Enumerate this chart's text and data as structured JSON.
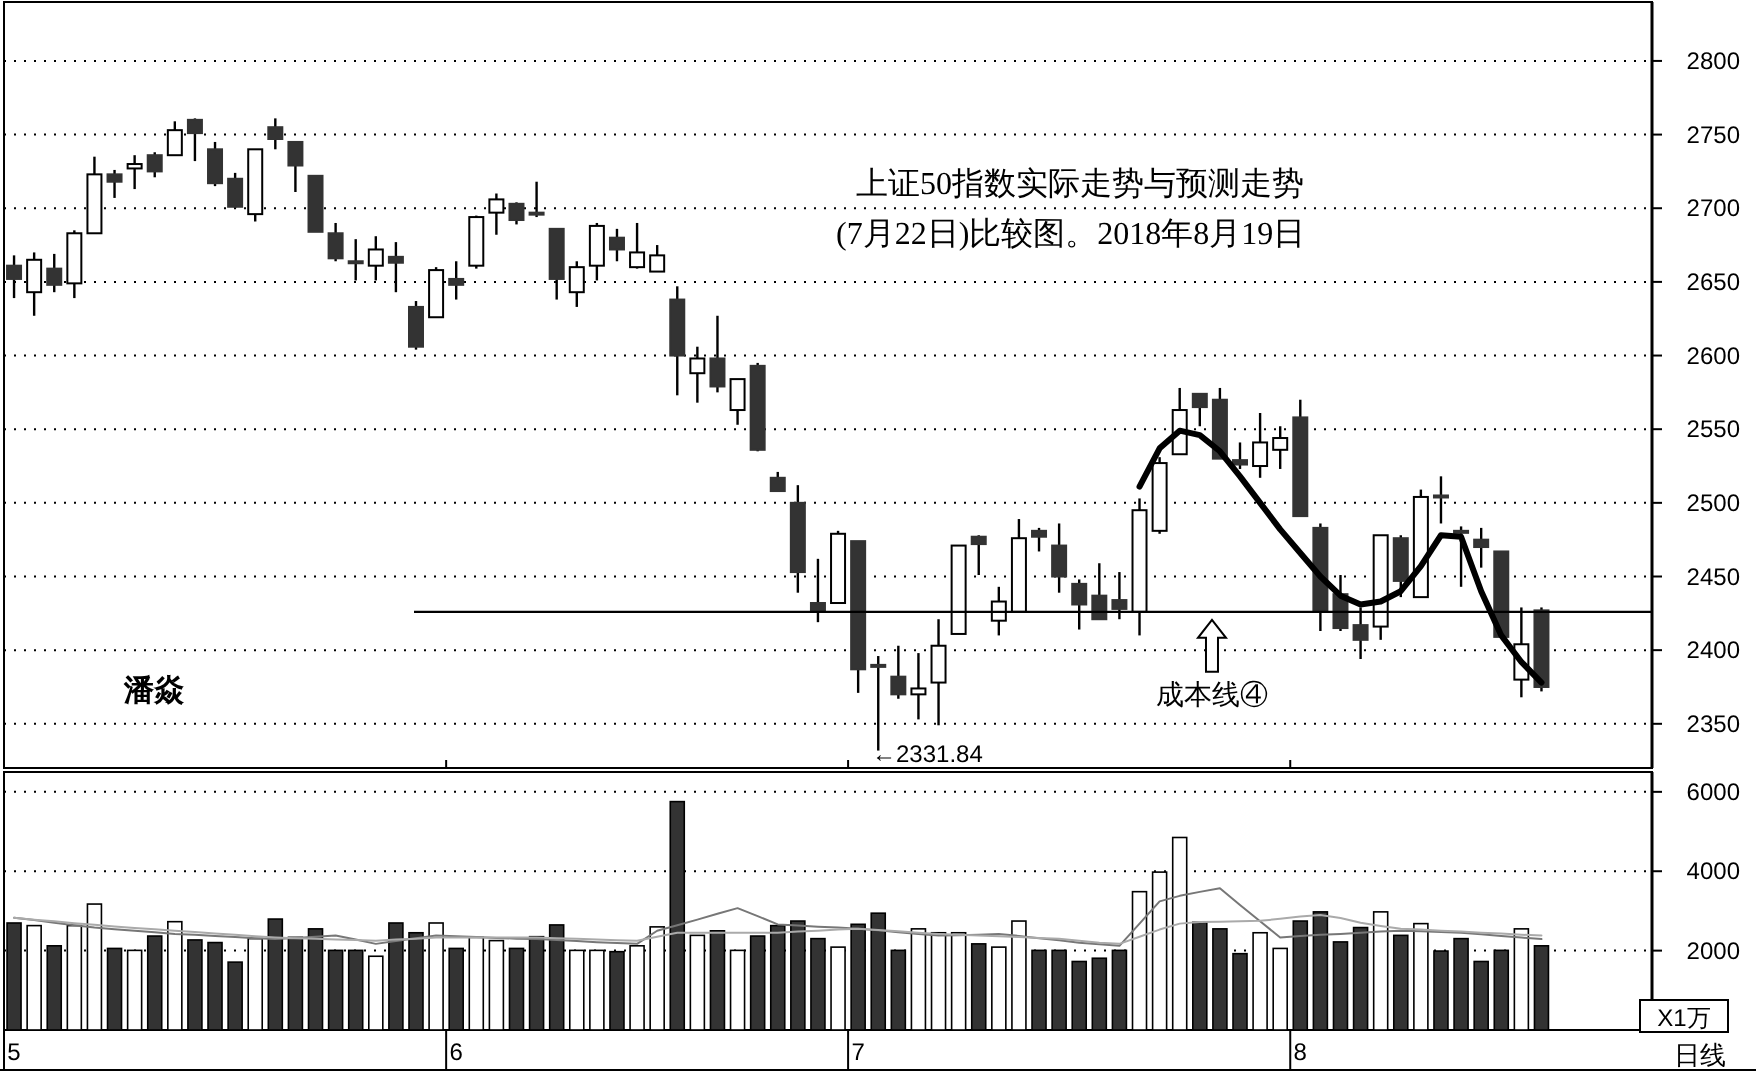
{
  "chart_data": [
    {
      "type": "candlestick",
      "categories": [
        "5",
        null,
        null,
        null,
        null,
        null,
        null,
        null,
        null,
        null,
        null,
        null,
        null,
        null,
        null,
        null,
        null,
        null,
        null,
        null,
        null,
        null,
        "6",
        null,
        null,
        null,
        null,
        null,
        null,
        null,
        null,
        null,
        null,
        null,
        null,
        null,
        null,
        null,
        null,
        null,
        null,
        null,
        "7",
        null,
        null,
        null,
        null,
        null,
        null,
        null,
        null,
        null,
        null,
        null,
        null,
        null,
        null,
        null,
        null,
        null,
        null,
        null,
        null,
        null,
        "8",
        null,
        null,
        null,
        null,
        null,
        null,
        null,
        null,
        null,
        null,
        null,
        null,
        null,
        null,
        null,
        null,
        null
      ],
      "ohlc": [
        [
          2661,
          2668,
          2639,
          2652
        ],
        [
          2643,
          2670,
          2627,
          2665
        ],
        [
          2659,
          2669,
          2643,
          2648
        ],
        [
          2649,
          2685,
          2639,
          2683
        ],
        [
          2683,
          2735,
          2683,
          2723
        ],
        [
          2723,
          2726,
          2707,
          2718
        ],
        [
          2727,
          2736,
          2713,
          2730
        ],
        [
          2736,
          2738,
          2721,
          2725
        ],
        [
          2736,
          2759,
          2736,
          2753
        ],
        [
          2760,
          2761,
          2732,
          2751
        ],
        [
          2740,
          2745,
          2715,
          2717
        ],
        [
          2720,
          2724,
          2700,
          2701
        ],
        [
          2696,
          2740,
          2691,
          2740
        ],
        [
          2755,
          2761,
          2740,
          2747
        ],
        [
          2745,
          2745,
          2711,
          2729
        ],
        [
          2722,
          2722,
          2684,
          2684
        ],
        [
          2683,
          2690,
          2664,
          2666
        ],
        [
          2664,
          2679,
          2651,
          2663
        ],
        [
          2661,
          2681,
          2651,
          2672
        ],
        [
          2667,
          2677,
          2643,
          2663
        ],
        [
          2633,
          2637,
          2604,
          2606
        ],
        [
          2626,
          2660,
          2626,
          2658
        ],
        [
          2652,
          2664,
          2638,
          2648
        ],
        [
          2661,
          2695,
          2659,
          2694
        ],
        [
          2697,
          2710,
          2682,
          2706
        ],
        [
          2703,
          2704,
          2689,
          2692
        ],
        [
          2697,
          2718,
          2694,
          2696
        ],
        [
          2686,
          2686,
          2638,
          2652
        ],
        [
          2643,
          2664,
          2633,
          2660
        ],
        [
          2661,
          2690,
          2651,
          2688
        ],
        [
          2680,
          2686,
          2664,
          2672
        ],
        [
          2660,
          2690,
          2659,
          2670
        ],
        [
          2657,
          2675,
          2657,
          2668
        ],
        [
          2638,
          2647,
          2573,
          2600
        ],
        [
          2588,
          2606,
          2568,
          2598
        ],
        [
          2598,
          2627,
          2575,
          2579
        ],
        [
          2563,
          2584,
          2553,
          2584
        ],
        [
          2593,
          2595,
          2535,
          2536
        ],
        [
          2517,
          2521,
          2508,
          2508
        ],
        [
          2500,
          2512,
          2439,
          2453
        ],
        [
          2432,
          2462,
          2419,
          2426
        ],
        [
          2432,
          2481,
          2432,
          2479
        ],
        [
          2474,
          2474,
          2371,
          2387
        ],
        [
          2390,
          2396,
          2331.84,
          2389
        ],
        [
          2382,
          2403,
          2367,
          2370
        ],
        [
          2370,
          2398,
          2353,
          2374
        ],
        [
          2378,
          2421,
          2349,
          2403
        ],
        [
          2411,
          2471,
          2411,
          2471
        ],
        [
          2477,
          2478,
          2451,
          2472
        ],
        [
          2420,
          2443,
          2410,
          2433
        ],
        [
          2426,
          2489,
          2426,
          2476
        ],
        [
          2481,
          2483,
          2467,
          2477
        ],
        [
          2471,
          2486,
          2439,
          2450
        ],
        [
          2445,
          2448,
          2414,
          2431
        ],
        [
          2437,
          2459,
          2421,
          2421
        ],
        [
          2434,
          2453,
          2421,
          2428
        ],
        [
          2426,
          2503,
          2410,
          2495
        ],
        [
          2481,
          2531,
          2479,
          2527
        ],
        [
          2533,
          2578,
          2533,
          2563
        ],
        [
          2574,
          2574,
          2552,
          2565
        ],
        [
          2570,
          2578,
          2530,
          2530
        ],
        [
          2529,
          2541,
          2523,
          2526
        ],
        [
          2525,
          2561,
          2517,
          2541
        ],
        [
          2536,
          2552,
          2523,
          2544
        ],
        [
          2558,
          2570,
          2491,
          2491
        ],
        [
          2483,
          2486,
          2413,
          2427
        ],
        [
          2438,
          2451,
          2413,
          2415
        ],
        [
          2417,
          2429,
          2394,
          2407
        ],
        [
          2416,
          2478,
          2407,
          2478
        ],
        [
          2476,
          2478,
          2436,
          2447
        ],
        [
          2436,
          2509,
          2436,
          2504
        ],
        [
          2505,
          2518,
          2486,
          2504
        ],
        [
          2481,
          2484,
          2443,
          2480
        ],
        [
          2475,
          2483,
          2456,
          2470
        ],
        [
          2467,
          2467,
          2409,
          2409
        ],
        [
          2380,
          2429,
          2368,
          2404
        ],
        [
          2427,
          2429,
          2372,
          2375
        ],
        null,
        null,
        null,
        null,
        null
      ],
      "series": [
        {
          "type": "line",
          "color": "#000000",
          "values": [
            null,
            null,
            null,
            null,
            null,
            null,
            null,
            null,
            null,
            null,
            null,
            null,
            null,
            null,
            null,
            null,
            null,
            null,
            null,
            null,
            null,
            null,
            null,
            null,
            null,
            null,
            null,
            null,
            null,
            null,
            null,
            null,
            null,
            null,
            null,
            null,
            null,
            null,
            null,
            null,
            null,
            null,
            null,
            null,
            null,
            null,
            null,
            null,
            null,
            null,
            null,
            null,
            null,
            null,
            null,
            null,
            2511,
            2537,
            2549,
            2546,
            2535,
            2518,
            2500,
            2482,
            2466,
            2450,
            2437,
            2431,
            2433,
            2440,
            2457,
            2478,
            2477,
            2440,
            2410,
            2392,
            2378,
            null,
            null,
            null,
            null,
            null
          ]
        }
      ],
      "ylim": [
        2320,
        2840
      ],
      "yticks": [
        2350,
        2400,
        2450,
        2500,
        2550,
        2600,
        2650,
        2700,
        2750,
        2800
      ],
      "grid": "y",
      "tick_labels": "y",
      "ref_lines": [
        {
          "axis": "y",
          "value": 2426,
          "label": "成本线④",
          "color": "#000000"
        }
      ],
      "annotations": [
        "上证50指数实际走势与预测走势",
        "(7月22日)比较图。2018年8月19日",
        "潘焱",
        "←2331.84"
      ]
    },
    {
      "type": "bar",
      "categories": [
        "5",
        null,
        null,
        null,
        null,
        null,
        null,
        null,
        null,
        null,
        null,
        null,
        null,
        null,
        null,
        null,
        null,
        null,
        null,
        null,
        null,
        null,
        "6",
        null,
        null,
        null,
        null,
        null,
        null,
        null,
        null,
        null,
        null,
        null,
        null,
        null,
        null,
        null,
        null,
        null,
        null,
        null,
        "7",
        null,
        null,
        null,
        null,
        null,
        null,
        null,
        null,
        null,
        null,
        null,
        null,
        null,
        null,
        null,
        null,
        null,
        null,
        null,
        null,
        null,
        "8",
        null,
        null,
        null,
        null,
        null,
        null,
        null,
        null,
        null,
        null,
        null,
        null,
        null,
        null,
        null,
        null,
        null
      ],
      "values": [
        2696,
        2630,
        2121,
        2630,
        3173,
        2055,
        2006,
        2367,
        2729,
        2269,
        2203,
        1710,
        2302,
        2795,
        2334,
        2548,
        2006,
        2006,
        1858,
        2696,
        2450,
        2696,
        2055,
        2334,
        2252,
        2055,
        2351,
        2647,
        2006,
        2006,
        1973,
        2121,
        2598,
        5754,
        2384,
        2499,
        2006,
        2367,
        2630,
        2745,
        2302,
        2088,
        2663,
        2943,
        2006,
        2548,
        2450,
        2450,
        2170,
        2088,
        2745,
        2006,
        2006,
        1726,
        1808,
        2006,
        3485,
        3978,
        4850,
        2713,
        2548,
        1923,
        2450,
        2055,
        2745,
        2976,
        2219,
        2581,
        2976,
        2384,
        2680,
        1989,
        2302,
        1726,
        2006,
        2548,
        2121,
        null,
        null,
        null,
        null,
        null
      ],
      "colors": [
        "#333333",
        "#ffffff",
        "#333333",
        "#ffffff",
        "#ffffff",
        "#333333",
        "#ffffff",
        "#333333",
        "#ffffff",
        "#333333",
        "#333333",
        "#333333",
        "#ffffff",
        "#333333",
        "#333333",
        "#333333",
        "#333333",
        "#333333",
        "#ffffff",
        "#333333",
        "#333333",
        "#ffffff",
        "#333333",
        "#ffffff",
        "#ffffff",
        "#333333",
        "#333333",
        "#333333",
        "#ffffff",
        "#ffffff",
        "#333333",
        "#ffffff",
        "#ffffff",
        "#333333",
        "#ffffff",
        "#333333",
        "#ffffff",
        "#333333",
        "#333333",
        "#333333",
        "#333333",
        "#ffffff",
        "#333333",
        "#333333",
        "#333333",
        "#ffffff",
        "#ffffff",
        "#ffffff",
        "#333333",
        "#ffffff",
        "#ffffff",
        "#333333",
        "#333333",
        "#333333",
        "#333333",
        "#333333",
        "#ffffff",
        "#ffffff",
        "#ffffff",
        "#333333",
        "#333333",
        "#333333",
        "#ffffff",
        "#ffffff",
        "#333333",
        "#333333",
        "#333333",
        "#333333",
        "#ffffff",
        "#333333",
        "#ffffff",
        "#333333",
        "#333333",
        "#333333",
        "#333333",
        "#ffffff",
        "#333333",
        null,
        null,
        null,
        null,
        null
      ],
      "series": [
        {
          "type": "line",
          "color": "#777777",
          "values": [
            2830,
            2770,
            2700,
            2640,
            2580,
            2540,
            2500,
            2460,
            2420,
            2400,
            2370,
            2340,
            2310,
            2290,
            2320,
            2350,
            2380,
            2280,
            2170,
            2240,
            2310,
            2380,
            2360,
            2340,
            2320,
            2300,
            2290,
            2270,
            2240,
            2210,
            2190,
            2170,
            2500,
            2640,
            2780,
            2930,
            3070,
            2870,
            2660,
            2630,
            2600,
            2580,
            2550,
            2510,
            2460,
            2420,
            2380,
            2390,
            2400,
            2420,
            2370,
            2310,
            2260,
            2200,
            2160,
            2120,
            2680,
            3240,
            3380,
            3480,
            3570,
            3150,
            2740,
            2330,
            2370,
            2400,
            2420,
            2450,
            2480,
            2500,
            2490,
            2470,
            2450,
            2410,
            2370,
            2330,
            2290,
            null,
            null,
            null,
            null,
            null
          ]
        },
        {
          "type": "line",
          "color": "#aaaaaa",
          "values": [
            2830,
            2780,
            2740,
            2690,
            2650,
            2610,
            2570,
            2540,
            2500,
            2470,
            2430,
            2400,
            2360,
            2330,
            2310,
            2300,
            2280,
            2270,
            2250,
            2280,
            2300,
            2330,
            2330,
            2330,
            2330,
            2330,
            2330,
            2310,
            2300,
            2280,
            2260,
            2250,
            2350,
            2450,
            2450,
            2450,
            2450,
            2450,
            2450,
            2480,
            2500,
            2530,
            2550,
            2520,
            2490,
            2450,
            2420,
            2400,
            2380,
            2360,
            2340,
            2320,
            2300,
            2250,
            2200,
            2170,
            2350,
            2530,
            2680,
            2720,
            2730,
            2740,
            2750,
            2800,
            2860,
            2900,
            2820,
            2700,
            2620,
            2550,
            2530,
            2500,
            2480,
            2450,
            2430,
            2400,
            2380,
            null,
            null,
            null,
            null,
            null
          ]
        }
      ],
      "ylim": [
        0,
        6500
      ],
      "yticks": [
        2000,
        4000,
        6000
      ],
      "grid": "y",
      "ylabel": "X1万",
      "annotations": [
        "日线"
      ]
    }
  ]
}
